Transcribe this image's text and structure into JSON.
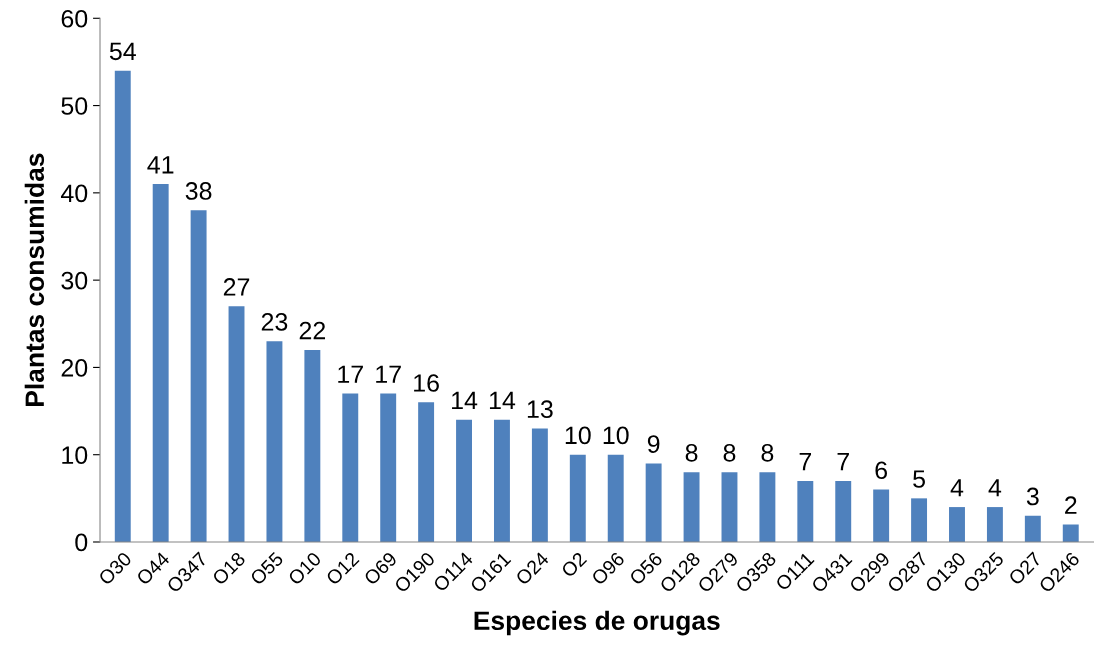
{
  "chart_data": {
    "type": "bar",
    "xlabel": "Especies de orugas",
    "ylabel": "Plantas consumidas",
    "categories": [
      "O30",
      "O44",
      "O347",
      "O18",
      "O55",
      "O10",
      "O12",
      "O69",
      "O190",
      "O114",
      "O161",
      "O24",
      "O2",
      "O96",
      "O56",
      "O128",
      "O279",
      "O358",
      "O111",
      "O431",
      "O299",
      "O287",
      "O130",
      "O325",
      "O27",
      "O246"
    ],
    "values": [
      54,
      41,
      38,
      27,
      23,
      22,
      17,
      17,
      16,
      14,
      14,
      13,
      10,
      10,
      9,
      8,
      8,
      8,
      7,
      7,
      6,
      5,
      4,
      4,
      3,
      2
    ],
    "color": "#4f81bd",
    "ylim": [
      0,
      60
    ],
    "yticks": [
      0,
      10,
      20,
      30,
      40,
      50,
      60
    ],
    "grid": false,
    "legend": false,
    "data_labels": true
  }
}
